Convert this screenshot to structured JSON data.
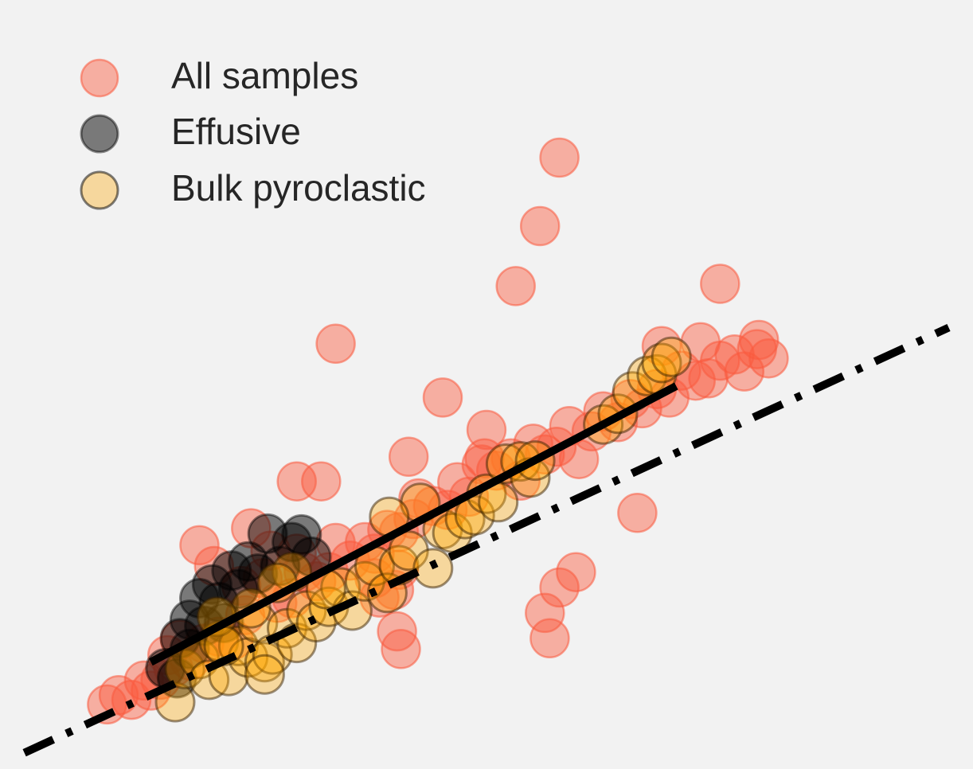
{
  "chart_data": {
    "type": "scatter",
    "title": "",
    "xlabel": "",
    "ylabel": "",
    "grid": false,
    "axes_visible": false,
    "xlim": [
      0,
      100
    ],
    "ylim": [
      0,
      100
    ],
    "legend": {
      "placement": "top-left",
      "entries": [
        {
          "label": "All samples",
          "color": "#fa5a3e",
          "opacity": 0.45
        },
        {
          "label": "Effusive",
          "color": "#000000",
          "opacity": 0.5
        },
        {
          "label": "Bulk pyroclastic",
          "color": "#ffa500",
          "opacity": 0.35
        }
      ]
    },
    "series": [
      {
        "name": "All samples",
        "color": "#fa5a3e",
        "points": [
          [
            11.0,
            8.4
          ],
          [
            12.2,
            9.6
          ],
          [
            13.5,
            9.0
          ],
          [
            14.8,
            11.5
          ],
          [
            15.5,
            10.2
          ],
          [
            16.5,
            11.6
          ],
          [
            17.8,
            13.2
          ],
          [
            18.5,
            16.8
          ],
          [
            17.2,
            14.8
          ],
          [
            19.5,
            14.1
          ],
          [
            21.0,
            16.3
          ],
          [
            22.5,
            17.2
          ],
          [
            24.0,
            16.8
          ],
          [
            25.2,
            20.0
          ],
          [
            24.8,
            23.8
          ],
          [
            27.0,
            24.8
          ],
          [
            28.5,
            21.6
          ],
          [
            30.0,
            22.2
          ],
          [
            31.2,
            25.6
          ],
          [
            32.5,
            24.4
          ],
          [
            30.5,
            28.0
          ],
          [
            33.8,
            25.6
          ],
          [
            34.5,
            29.4
          ],
          [
            36.0,
            27.1
          ],
          [
            37.5,
            29.5
          ],
          [
            38.5,
            28.0
          ],
          [
            39.8,
            31.1
          ],
          [
            41.0,
            30.8
          ],
          [
            42.5,
            32.5
          ],
          [
            43.0,
            35.2
          ],
          [
            44.5,
            34.2
          ],
          [
            46.0,
            33.7
          ],
          [
            47.0,
            37.3
          ],
          [
            48.2,
            35.4
          ],
          [
            49.5,
            39.6
          ],
          [
            51.0,
            38.8
          ],
          [
            52.5,
            40.4
          ],
          [
            53.5,
            37.5
          ],
          [
            54.8,
            42.3
          ],
          [
            56.0,
            40.9
          ],
          [
            57.2,
            41.9
          ],
          [
            58.5,
            44.6
          ],
          [
            59.5,
            40.3
          ],
          [
            60.8,
            43.9
          ],
          [
            62.0,
            46.5
          ],
          [
            63.5,
            45.1
          ],
          [
            64.8,
            48.1
          ],
          [
            66.0,
            46.9
          ],
          [
            67.5,
            49.4
          ],
          [
            68.8,
            48.3
          ],
          [
            70.0,
            51.8
          ],
          [
            71.5,
            50.5
          ],
          [
            72.8,
            50.8
          ],
          [
            74.0,
            53.1
          ],
          [
            75.5,
            53.9
          ],
          [
            76.5,
            51.7
          ],
          [
            77.8,
            54.6
          ],
          [
            79.0,
            53.4
          ],
          [
            40.5,
            23.3
          ],
          [
            41.0,
            25.9
          ],
          [
            41.2,
            15.6
          ],
          [
            40.8,
            17.9
          ],
          [
            39.0,
            22.3
          ],
          [
            38.5,
            24.8
          ],
          [
            56.0,
            20.3
          ],
          [
            56.5,
            17.0
          ],
          [
            57.5,
            23.6
          ],
          [
            59.2,
            25.6
          ],
          [
            65.5,
            33.3
          ],
          [
            49.8,
            40.4
          ],
          [
            42.0,
            40.6
          ],
          [
            30.5,
            37.4
          ],
          [
            33.0,
            37.4
          ],
          [
            25.8,
            31.3
          ],
          [
            27.8,
            28.4
          ],
          [
            20.5,
            29.1
          ],
          [
            22.0,
            26.4
          ],
          [
            34.5,
            55.3
          ],
          [
            50.0,
            44.1
          ],
          [
            45.5,
            48.3
          ],
          [
            68.0,
            55.0
          ],
          [
            72.0,
            55.5
          ],
          [
            78.0,
            55.8
          ],
          [
            53.0,
            62.8
          ],
          [
            55.5,
            70.6
          ],
          [
            57.5,
            79.5
          ],
          [
            74.0,
            63.1
          ]
        ]
      },
      {
        "name": "Effusive",
        "color": "#000000",
        "points": [
          [
            17.0,
            13.1
          ],
          [
            18.5,
            17.0
          ],
          [
            19.5,
            19.4
          ],
          [
            20.5,
            22.2
          ],
          [
            21.8,
            24.0
          ],
          [
            22.5,
            21.7
          ],
          [
            23.8,
            25.8
          ],
          [
            24.5,
            23.4
          ],
          [
            25.5,
            27.0
          ],
          [
            26.5,
            25.4
          ],
          [
            27.5,
            30.6
          ],
          [
            28.8,
            26.4
          ],
          [
            30.0,
            29.5
          ],
          [
            31.0,
            30.5
          ],
          [
            32.0,
            27.6
          ],
          [
            19.5,
            15.6
          ],
          [
            21.0,
            18.6
          ],
          [
            23.0,
            19.0
          ],
          [
            18.2,
            11.8
          ]
        ]
      },
      {
        "name": "Bulk pyroclastic",
        "color": "#ffa500",
        "points": [
          [
            18.0,
            8.7
          ],
          [
            19.0,
            13.0
          ],
          [
            20.5,
            14.3
          ],
          [
            21.5,
            11.6
          ],
          [
            22.5,
            16.6
          ],
          [
            23.5,
            12.1
          ],
          [
            24.5,
            16.0
          ],
          [
            25.5,
            14.5
          ],
          [
            26.5,
            19.0
          ],
          [
            27.2,
            13.9
          ],
          [
            28.0,
            14.9
          ],
          [
            29.5,
            18.3
          ],
          [
            30.5,
            16.4
          ],
          [
            31.5,
            20.6
          ],
          [
            32.5,
            19.1
          ],
          [
            33.8,
            21.1
          ],
          [
            35.0,
            23.6
          ],
          [
            36.2,
            20.6
          ],
          [
            37.5,
            24.4
          ],
          [
            38.5,
            26.4
          ],
          [
            39.8,
            22.9
          ],
          [
            41.0,
            26.5
          ],
          [
            42.0,
            28.4
          ],
          [
            43.2,
            34.6
          ],
          [
            44.5,
            26.1
          ],
          [
            45.5,
            31.2
          ],
          [
            46.5,
            30.7
          ],
          [
            47.8,
            32.5
          ],
          [
            48.8,
            33.0
          ],
          [
            50.0,
            35.8
          ],
          [
            51.2,
            34.7
          ],
          [
            52.0,
            39.7
          ],
          [
            53.5,
            40.0
          ],
          [
            54.5,
            37.9
          ],
          [
            55.0,
            40.1
          ],
          [
            62.0,
            44.8
          ],
          [
            63.5,
            46.2
          ],
          [
            65.0,
            49.1
          ],
          [
            66.5,
            51.1
          ],
          [
            67.5,
            51.3
          ],
          [
            68.0,
            52.8
          ],
          [
            69.0,
            53.6
          ],
          [
            40.0,
            32.8
          ],
          [
            30.0,
            25.6
          ],
          [
            28.5,
            24.2
          ],
          [
            25.8,
            20.9
          ],
          [
            22.3,
            19.8
          ],
          [
            27.2,
            12.3
          ],
          [
            23.0,
            16.0
          ],
          [
            33.5,
            23.4
          ]
        ]
      }
    ],
    "fit_lines": [
      {
        "style": "dashed",
        "color": "#000000",
        "from": [
          2.5,
          2.1
        ],
        "to": [
          97.5,
          57.4
        ]
      },
      {
        "style": "solid",
        "color": "#000000",
        "from": [
          15.5,
          13.9
        ],
        "to": [
          69.5,
          49.8
        ]
      }
    ]
  }
}
